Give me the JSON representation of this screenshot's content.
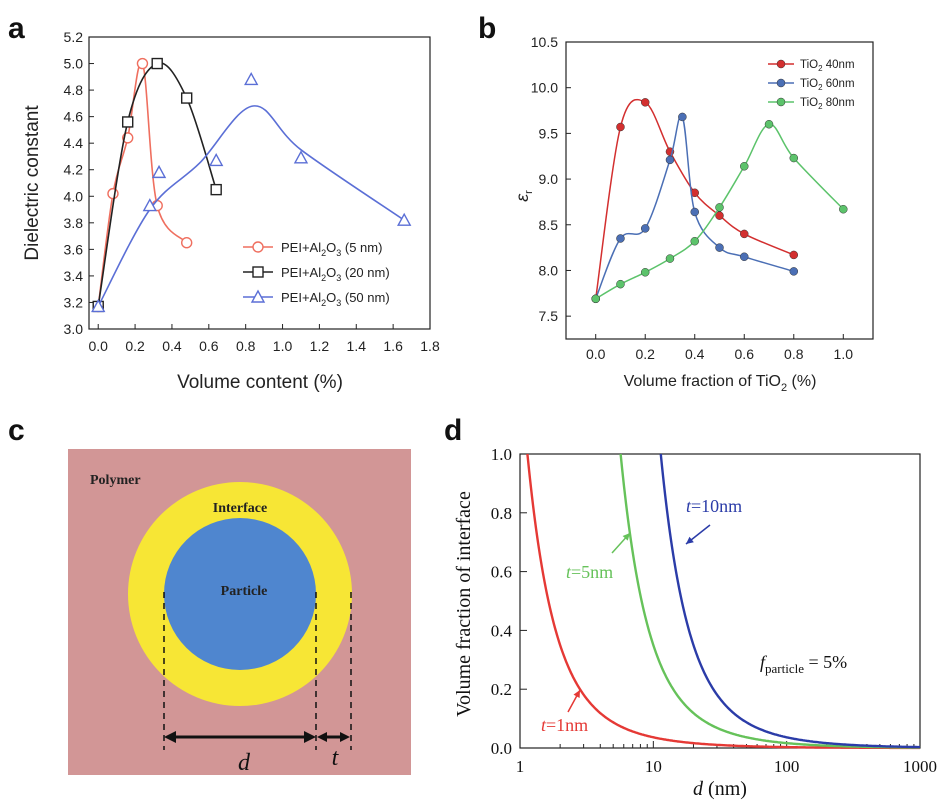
{
  "panel_labels": {
    "a": "a",
    "b": "b",
    "c": "c",
    "d": "d"
  },
  "chart_data": [
    {
      "panel": "a",
      "type": "line",
      "xlabel": "Volume content (%)",
      "ylabel": "Dielectric constant",
      "xlim": [
        -0.05,
        1.8
      ],
      "ylim": [
        3.0,
        5.2
      ],
      "xticks": [
        "0.0",
        "0.2",
        "0.4",
        "0.6",
        "0.8",
        "1.0",
        "1.2",
        "1.4",
        "1.6",
        "1.8"
      ],
      "yticks": [
        "3.0",
        "3.2",
        "3.4",
        "3.6",
        "3.8",
        "4.0",
        "4.2",
        "4.4",
        "4.6",
        "4.8",
        "5.0",
        "5.2"
      ],
      "legend_position": "lower-right",
      "series": [
        {
          "name": "PEI+Al2O3 (5 nm)",
          "legend_main": "PEI+Al",
          "legend_sub": "2",
          "legend_rest": "O",
          "legend_sub2": "3",
          "legend_tail": " (5 nm)",
          "color": "#ef6f5f",
          "marker": "circle",
          "points": [
            [
              0.0,
              3.17
            ],
            [
              0.08,
              4.02
            ],
            [
              0.16,
              4.44
            ],
            [
              0.24,
              5.0
            ],
            [
              0.32,
              3.93
            ],
            [
              0.48,
              3.65
            ]
          ]
        },
        {
          "name": "PEI+Al2O3 (20 nm)",
          "legend_main": "PEI+Al",
          "legend_sub": "2",
          "legend_rest": "O",
          "legend_sub2": "3",
          "legend_tail": " (20 nm)",
          "color": "#222222",
          "marker": "square",
          "points": [
            [
              0.0,
              3.17
            ],
            [
              0.16,
              4.56
            ],
            [
              0.32,
              5.0
            ],
            [
              0.48,
              4.74
            ],
            [
              0.64,
              4.05
            ]
          ]
        },
        {
          "name": "PEI+Al2O3 (50 nm)",
          "legend_main": "PEI+Al",
          "legend_sub": "2",
          "legend_rest": "O",
          "legend_sub2": "3",
          "legend_tail": " (50 nm)",
          "color": "#5b6fd6",
          "marker": "triangle",
          "points": [
            [
              0.0,
              3.17
            ],
            [
              0.28,
              3.93
            ],
            [
              0.33,
              4.18
            ],
            [
              0.64,
              4.27
            ],
            [
              0.83,
              4.88
            ],
            [
              1.1,
              4.29
            ],
            [
              1.66,
              3.82
            ]
          ]
        }
      ]
    },
    {
      "panel": "b",
      "type": "line",
      "xlabel_main": "Volume fraction of TiO",
      "xlabel_sub": "2",
      "xlabel_tail": " (%)",
      "ylabel": "ε",
      "ylabel_sub": "r",
      "xlim": [
        -0.12,
        1.12
      ],
      "ylim": [
        7.25,
        10.5
      ],
      "xticks": [
        "0.0",
        "0.2",
        "0.4",
        "0.6",
        "0.8",
        "1.0"
      ],
      "yticks": [
        "7.5",
        "8.0",
        "8.5",
        "9.0",
        "9.5",
        "10.0",
        "10.5"
      ],
      "legend_position": "top-right",
      "series": [
        {
          "name": "TiO2 40nm",
          "legend_main": "TiO",
          "legend_sub": "2",
          "legend_tail": " 40nm",
          "color": "#d32f2f",
          "points": [
            [
              0.0,
              7.69
            ],
            [
              0.1,
              9.57
            ],
            [
              0.2,
              9.84
            ],
            [
              0.3,
              9.3
            ],
            [
              0.4,
              8.85
            ],
            [
              0.5,
              8.6
            ],
            [
              0.6,
              8.4
            ],
            [
              0.8,
              8.17
            ]
          ]
        },
        {
          "name": "TiO2 60nm",
          "legend_main": "TiO",
          "legend_sub": "2",
          "legend_tail": " 60nm",
          "color": "#4b6fb5",
          "points": [
            [
              0.0,
              7.69
            ],
            [
              0.1,
              8.35
            ],
            [
              0.2,
              8.46
            ],
            [
              0.3,
              9.21
            ],
            [
              0.35,
              9.68
            ],
            [
              0.4,
              8.64
            ],
            [
              0.5,
              8.25
            ],
            [
              0.6,
              8.15
            ],
            [
              0.8,
              7.99
            ]
          ]
        },
        {
          "name": "TiO2 80nm",
          "legend_main": "TiO",
          "legend_sub": "2",
          "legend_tail": " 80nm",
          "color": "#5cc36b",
          "points": [
            [
              0.0,
              7.69
            ],
            [
              0.1,
              7.85
            ],
            [
              0.2,
              7.98
            ],
            [
              0.3,
              8.13
            ],
            [
              0.4,
              8.32
            ],
            [
              0.5,
              8.69
            ],
            [
              0.6,
              9.14
            ],
            [
              0.7,
              9.6
            ],
            [
              0.8,
              9.23
            ],
            [
              1.0,
              8.67
            ]
          ]
        }
      ]
    },
    {
      "panel": "d",
      "type": "line",
      "xlabel_main": "d",
      "xlabel_tail": " (nm)",
      "ylabel": "Volume fraction of interface",
      "xscale": "log",
      "xlim": [
        1,
        1000
      ],
      "ylim": [
        0,
        1.0
      ],
      "xticks": [
        "1",
        "10",
        "100",
        "1000"
      ],
      "yticks": [
        "0.0",
        "0.2",
        "0.4",
        "0.6",
        "0.8",
        "1.0"
      ],
      "fraction_particle": 0.05,
      "annotation_f_main": "f",
      "annotation_f_sub": "particle",
      "annotation_f_tail": " = 5%",
      "series": [
        {
          "name": "t=1nm",
          "t": 1,
          "color": "#e53935",
          "label_main": "t",
          "label_tail": "=1nm"
        },
        {
          "name": "t=5nm",
          "t": 5,
          "color": "#66c25a",
          "label_main": "t",
          "label_tail": "=5nm"
        },
        {
          "name": "t=10nm",
          "t": 10,
          "color": "#2b3ca8",
          "label_main": "t",
          "label_tail": "=10nm"
        }
      ]
    }
  ],
  "schematic_c": {
    "polymer_label": "Polymer",
    "interface_label": "Interface",
    "particle_label": "Particle",
    "d_label": "d",
    "t_label": "t",
    "colors": {
      "polymer": "#d29696",
      "interface": "#f7e635",
      "particle": "#4f86cf"
    }
  }
}
